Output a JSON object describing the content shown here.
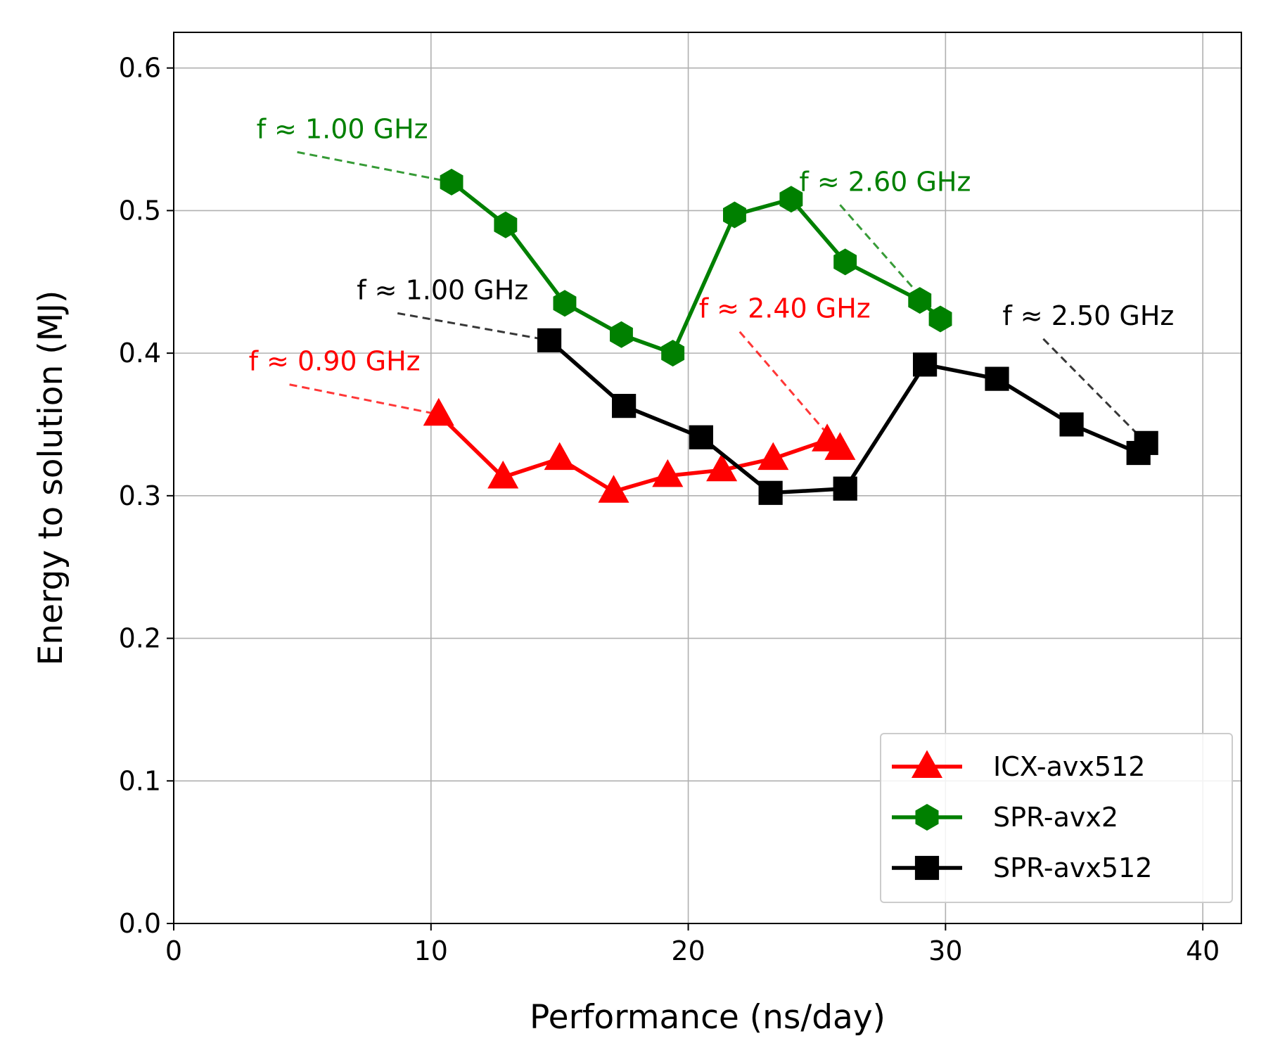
{
  "chart_data": {
    "type": "line",
    "title": "",
    "xlabel": "Performance (ns/day)",
    "ylabel": "Energy to solution (MJ)",
    "xlim": [
      0,
      41.5
    ],
    "ylim": [
      0,
      0.625
    ],
    "xticks": [
      0,
      10,
      20,
      30,
      40
    ],
    "xtick_labels": [
      "0",
      "10",
      "20",
      "30",
      "40"
    ],
    "yticks": [
      0.0,
      0.1,
      0.2,
      0.3,
      0.4,
      0.5,
      0.6
    ],
    "ytick_labels": [
      "0.0",
      "0.1",
      "0.2",
      "0.3",
      "0.4",
      "0.5",
      "0.6"
    ],
    "grid": true,
    "legend_position": "lower-right",
    "series": [
      {
        "name": "ICX-avx512",
        "color": "#ff0000",
        "marker": "triangle",
        "x": [
          10.3,
          12.8,
          15.0,
          17.1,
          19.2,
          21.3,
          23.3,
          25.4,
          25.9
        ],
        "y": [
          0.357,
          0.313,
          0.326,
          0.303,
          0.314,
          0.318,
          0.326,
          0.339,
          0.333
        ]
      },
      {
        "name": "SPR-avx2",
        "color": "#008000",
        "marker": "hexagon",
        "x": [
          10.8,
          12.9,
          15.2,
          17.4,
          19.4,
          21.8,
          24.0,
          26.1,
          29.0,
          29.8
        ],
        "y": [
          0.52,
          0.49,
          0.435,
          0.413,
          0.4,
          0.497,
          0.508,
          0.464,
          0.437,
          0.424
        ]
      },
      {
        "name": "SPR-avx512",
        "color": "#000000",
        "marker": "square",
        "x": [
          14.6,
          17.5,
          20.5,
          23.2,
          26.1,
          29.2,
          32.0,
          34.9,
          37.5,
          37.8
        ],
        "y": [
          0.409,
          0.363,
          0.341,
          0.302,
          0.305,
          0.392,
          0.382,
          0.35,
          0.33,
          0.337
        ]
      }
    ],
    "annotations": [
      {
        "text": "f ≈ 0.90 GHz",
        "color": "#ff0000",
        "text_at": [
          4.5,
          0.378
        ],
        "point": [
          10.3,
          0.357
        ]
      },
      {
        "text": "f ≈ 1.00 GHz",
        "color": "#008000",
        "text_at": [
          4.8,
          0.541
        ],
        "point": [
          10.8,
          0.52
        ]
      },
      {
        "text": "f ≈ 1.00 GHz",
        "color": "#000000",
        "text_at": [
          8.7,
          0.428
        ],
        "point": [
          14.6,
          0.409
        ]
      },
      {
        "text": "f ≈ 2.40 GHz",
        "color": "#ff0000",
        "text_at": [
          22.0,
          0.415
        ],
        "point": [
          25.9,
          0.333
        ]
      },
      {
        "text": "f ≈ 2.60 GHz",
        "color": "#008000",
        "text_at": [
          25.9,
          0.504
        ],
        "point": [
          29.8,
          0.424
        ]
      },
      {
        "text": "f ≈ 2.50 GHz",
        "color": "#000000",
        "text_at": [
          33.8,
          0.41
        ],
        "point": [
          37.8,
          0.337
        ]
      }
    ]
  }
}
